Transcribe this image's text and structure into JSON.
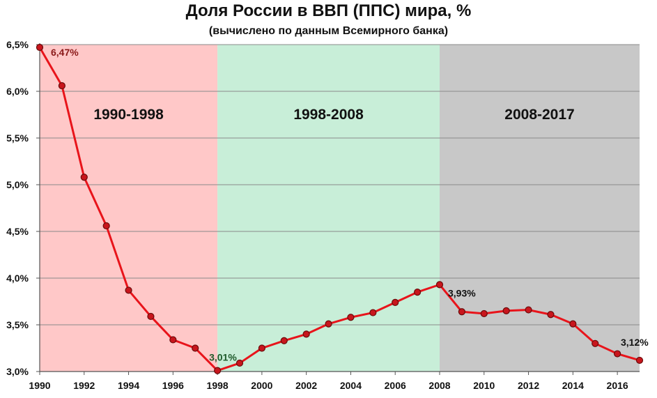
{
  "chart_data": {
    "type": "line",
    "title": "Доля России в ВВП (ППС) мира, %",
    "subtitle": "(вычислено по данным Всемирного банка)",
    "xlabel": "",
    "ylabel": "",
    "x": [
      1990,
      1991,
      1992,
      1993,
      1994,
      1995,
      1996,
      1997,
      1998,
      1999,
      2000,
      2001,
      2002,
      2003,
      2004,
      2005,
      2006,
      2007,
      2008,
      2009,
      2010,
      2011,
      2012,
      2013,
      2014,
      2015,
      2016,
      2017
    ],
    "series": [
      {
        "values": [
          6.47,
          6.06,
          5.08,
          4.56,
          3.87,
          3.59,
          3.34,
          3.25,
          3.01,
          3.09,
          3.25,
          3.33,
          3.4,
          3.51,
          3.58,
          3.63,
          3.74,
          3.85,
          3.93,
          3.64,
          3.62,
          3.65,
          3.66,
          3.61,
          3.51,
          3.3,
          3.19,
          3.12
        ],
        "color": "#e8141b"
      }
    ],
    "xlim": [
      1990,
      2017
    ],
    "ylim": [
      3.0,
      6.5
    ],
    "y_ticks": [
      3.0,
      3.5,
      4.0,
      4.5,
      5.0,
      5.5,
      6.0,
      6.5
    ],
    "y_tick_labels": [
      "3,0%",
      "3,5%",
      "4,0%",
      "4,5%",
      "5,0%",
      "5,5%",
      "6,0%",
      "6,5%"
    ],
    "x_ticks": [
      1990,
      1992,
      1994,
      1996,
      1998,
      2000,
      2002,
      2004,
      2006,
      2008,
      2010,
      2012,
      2014,
      2016
    ],
    "x_tick_labels": [
      "1990",
      "1992",
      "1994",
      "1996",
      "1998",
      "2000",
      "2002",
      "2004",
      "2006",
      "2008",
      "2010",
      "2012",
      "2014",
      "2016"
    ],
    "grid": "horizontal",
    "legend": "none",
    "bands": [
      {
        "label": "1990-1998",
        "start": 1990,
        "end": 1998,
        "color": "#ffc8c8"
      },
      {
        "label": "1998-2008",
        "start": 1998,
        "end": 2008,
        "color": "#c8eed8"
      },
      {
        "label": "2008-2017",
        "start": 2008,
        "end": 2017,
        "color": "#c8c8c8"
      }
    ],
    "annotations": [
      {
        "x": 1990,
        "y": 6.47,
        "text": "6,47%",
        "color": "#8b1a1a"
      },
      {
        "x": 1998,
        "y": 3.01,
        "text": "3,01%",
        "color": "#1e5a2a"
      },
      {
        "x": 2008,
        "y": 3.93,
        "text": "3,93%",
        "color": "#111111"
      },
      {
        "x": 2017,
        "y": 3.12,
        "text": "3,12%",
        "color": "#111111"
      }
    ]
  }
}
